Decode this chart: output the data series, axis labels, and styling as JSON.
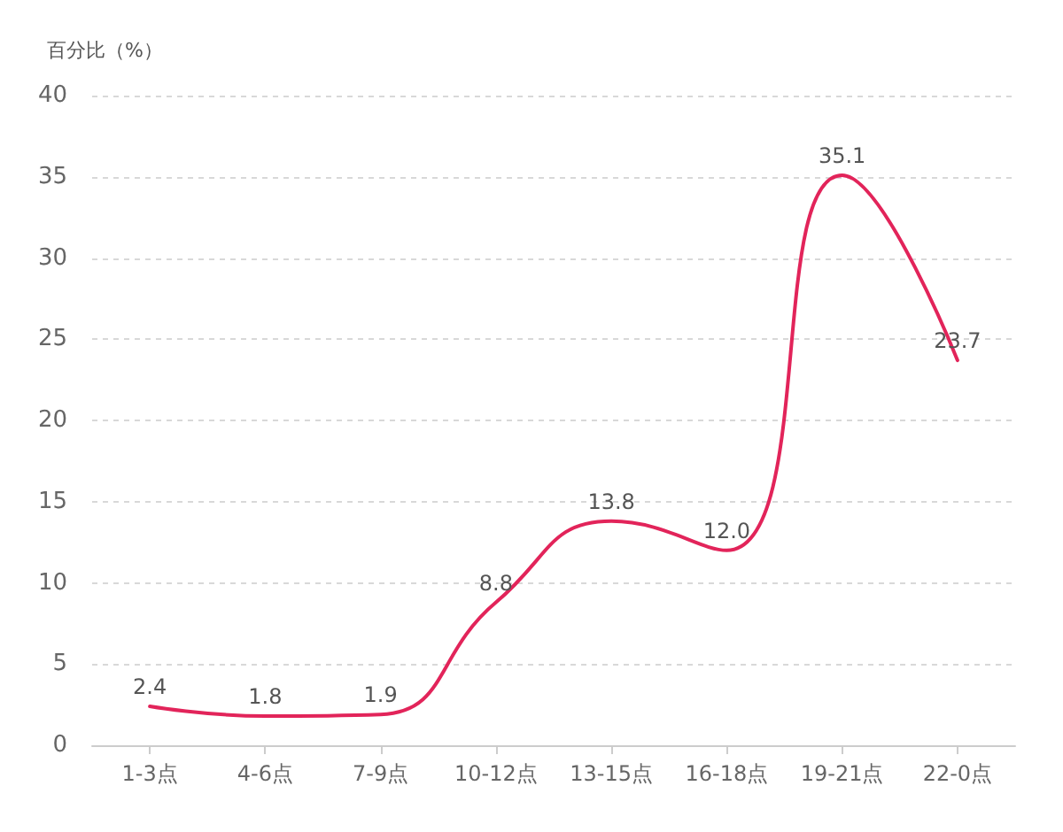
{
  "chart_data": {
    "type": "line",
    "ylabel": "百分比（%）",
    "categories": [
      "1-3点",
      "4-6点",
      "7-9点",
      "10-12点",
      "13-15点",
      "16-18点",
      "19-21点",
      "22-0点"
    ],
    "series": [
      {
        "color": "#e2245a",
        "values": [
          2.4,
          1.8,
          1.9,
          8.8,
          13.8,
          12.0,
          35.1,
          23.7
        ],
        "value_labels": [
          "2.4",
          "1.8",
          "1.9",
          "8.8",
          "13.8",
          "12.0",
          "35.1",
          "23.7"
        ]
      }
    ],
    "ylim": [
      0,
      40
    ],
    "yticks": [
      0,
      5,
      10,
      15,
      20,
      25,
      30,
      35,
      40
    ],
    "grid": "y",
    "marker": "none",
    "line_style": "solid"
  }
}
